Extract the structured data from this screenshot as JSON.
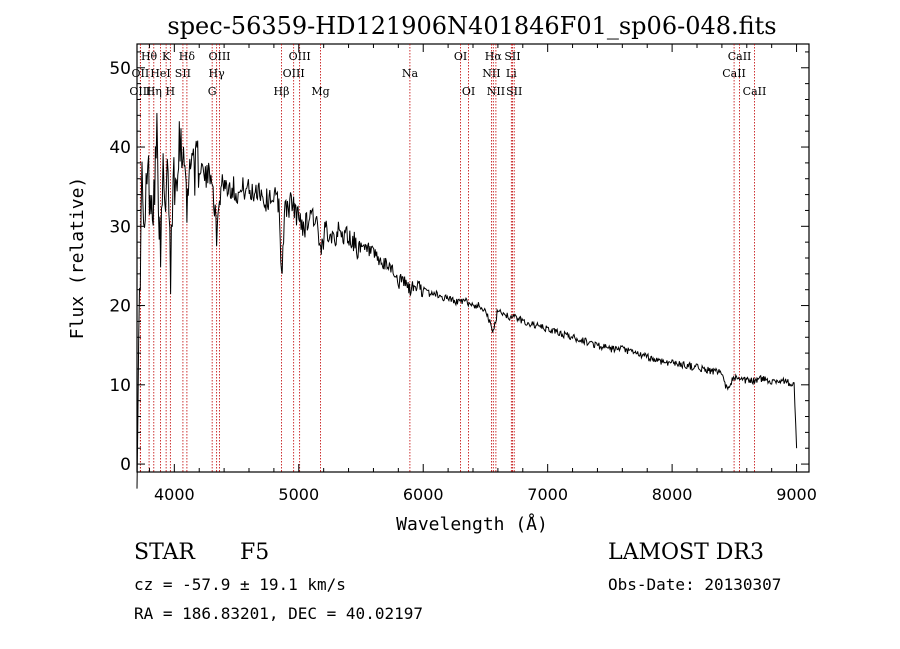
{
  "chart_data": {
    "type": "line",
    "title": "spec-56359-HD121906N401846F01_sp06-048.fits",
    "xlabel": "Wavelength (Å)",
    "ylabel": "Flux (relative)",
    "xlim": [
      3700,
      9100
    ],
    "ylim": [
      -1,
      53
    ],
    "xticks": [
      4000,
      5000,
      6000,
      7000,
      8000,
      9000
    ],
    "yticks": [
      0,
      10,
      20,
      30,
      40,
      50
    ],
    "grid": false,
    "series": [
      {
        "name": "spectrum",
        "x": [
          3700,
          3720,
          3740,
          3760,
          3780,
          3800,
          3830,
          3860,
          3890,
          3910,
          3930,
          3950,
          3970,
          3990,
          4010,
          4040,
          4060,
          4080,
          4101,
          4130,
          4170,
          4200,
          4250,
          4300,
          4340,
          4380,
          4420,
          4470,
          4520,
          4570,
          4620,
          4680,
          4730,
          4780,
          4840,
          4861,
          4890,
          4940,
          5000,
          5050,
          5100,
          5150,
          5175,
          5220,
          5270,
          5330,
          5380,
          5440,
          5500,
          5560,
          5620,
          5680,
          5740,
          5800,
          5850,
          5890,
          5950,
          6000,
          6050,
          6100,
          6150,
          6200,
          6250,
          6300,
          6350,
          6400,
          6450,
          6500,
          6563,
          6600,
          6650,
          6700,
          6750,
          6800,
          6900,
          7000,
          7100,
          7200,
          7300,
          7400,
          7500,
          7600,
          7700,
          7800,
          7900,
          8000,
          8100,
          8200,
          8300,
          8400,
          8430,
          8500,
          8542,
          8600,
          8662,
          8700,
          8800,
          8900,
          8980,
          9000
        ],
        "y": [
          0.5,
          20,
          36,
          27,
          38,
          35,
          33,
          41,
          25,
          37,
          30,
          39,
          23,
          38,
          35,
          42,
          39,
          41,
          31,
          40,
          37,
          38,
          36,
          37,
          29,
          36,
          35,
          35,
          34,
          35,
          34,
          35,
          33,
          34,
          33,
          24,
          32,
          33,
          31,
          30,
          32,
          30,
          26,
          30,
          29,
          29,
          29,
          28,
          27,
          27,
          26,
          25,
          25,
          23,
          23,
          22,
          22.5,
          22,
          21.5,
          21.5,
          21,
          21,
          20.5,
          20.5,
          20.5,
          20,
          20,
          19.5,
          16.5,
          19.5,
          19,
          18.5,
          18.5,
          18,
          17.5,
          17,
          16.5,
          16,
          15.5,
          15,
          14.5,
          14.5,
          14,
          13.5,
          13,
          12.8,
          12.5,
          12.2,
          11.8,
          11.5,
          9.5,
          11,
          10.5,
          10.5,
          10.5,
          10.8,
          10.5,
          10.5,
          10,
          2
        ]
      }
    ],
    "lines": [
      {
        "label": "Hθ",
        "wave": 3797,
        "row": 0
      },
      {
        "label": "OII",
        "wave": 3727,
        "row": 1
      },
      {
        "label": "OIII",
        "wave": 3727,
        "row": 2
      },
      {
        "label": "HeI",
        "wave": 3889,
        "row": 1
      },
      {
        "label": "Hη",
        "wave": 3835,
        "row": 2
      },
      {
        "label": "K",
        "wave": 3934,
        "row": 0
      },
      {
        "label": "H",
        "wave": 3968,
        "row": 2
      },
      {
        "label": "SII",
        "wave": 4069,
        "row": 1
      },
      {
        "label": "Hδ",
        "wave": 4101,
        "row": 0
      },
      {
        "label": "OIII",
        "wave": 4363,
        "row": 0
      },
      {
        "label": "Hγ",
        "wave": 4340,
        "row": 1
      },
      {
        "label": "G",
        "wave": 4304,
        "row": 2
      },
      {
        "label": "Hβ",
        "wave": 4861,
        "row": 2
      },
      {
        "label": "OIII",
        "wave": 5007,
        "row": 0
      },
      {
        "label": "OIII",
        "wave": 4959,
        "row": 1
      },
      {
        "label": "Mg",
        "wave": 5175,
        "row": 2
      },
      {
        "label": "Na",
        "wave": 5893,
        "row": 1
      },
      {
        "label": "OI",
        "wave": 6300,
        "row": 0
      },
      {
        "label": "OI",
        "wave": 6364,
        "row": 2
      },
      {
        "label": "Hα",
        "wave": 6563,
        "row": 0
      },
      {
        "label": "SII",
        "wave": 6717,
        "row": 0
      },
      {
        "label": "NII",
        "wave": 6548,
        "row": 1
      },
      {
        "label": "Li",
        "wave": 6708,
        "row": 1
      },
      {
        "label": "NII",
        "wave": 6584,
        "row": 2
      },
      {
        "label": "SII",
        "wave": 6731,
        "row": 2
      },
      {
        "label": "CaII",
        "wave": 8542,
        "row": 0
      },
      {
        "label": "CaII",
        "wave": 8498,
        "row": 1
      },
      {
        "label": "CaII",
        "wave": 8662,
        "row": 2
      }
    ]
  },
  "info": {
    "object_class": "STAR",
    "subclass": "F5",
    "survey": "LAMOST DR3",
    "cz": "cz = -57.9 ± 19.1 km/s",
    "obs_date": "Obs-Date: 20130307",
    "coords": "RA = 186.83201, DEC =  40.02197"
  }
}
